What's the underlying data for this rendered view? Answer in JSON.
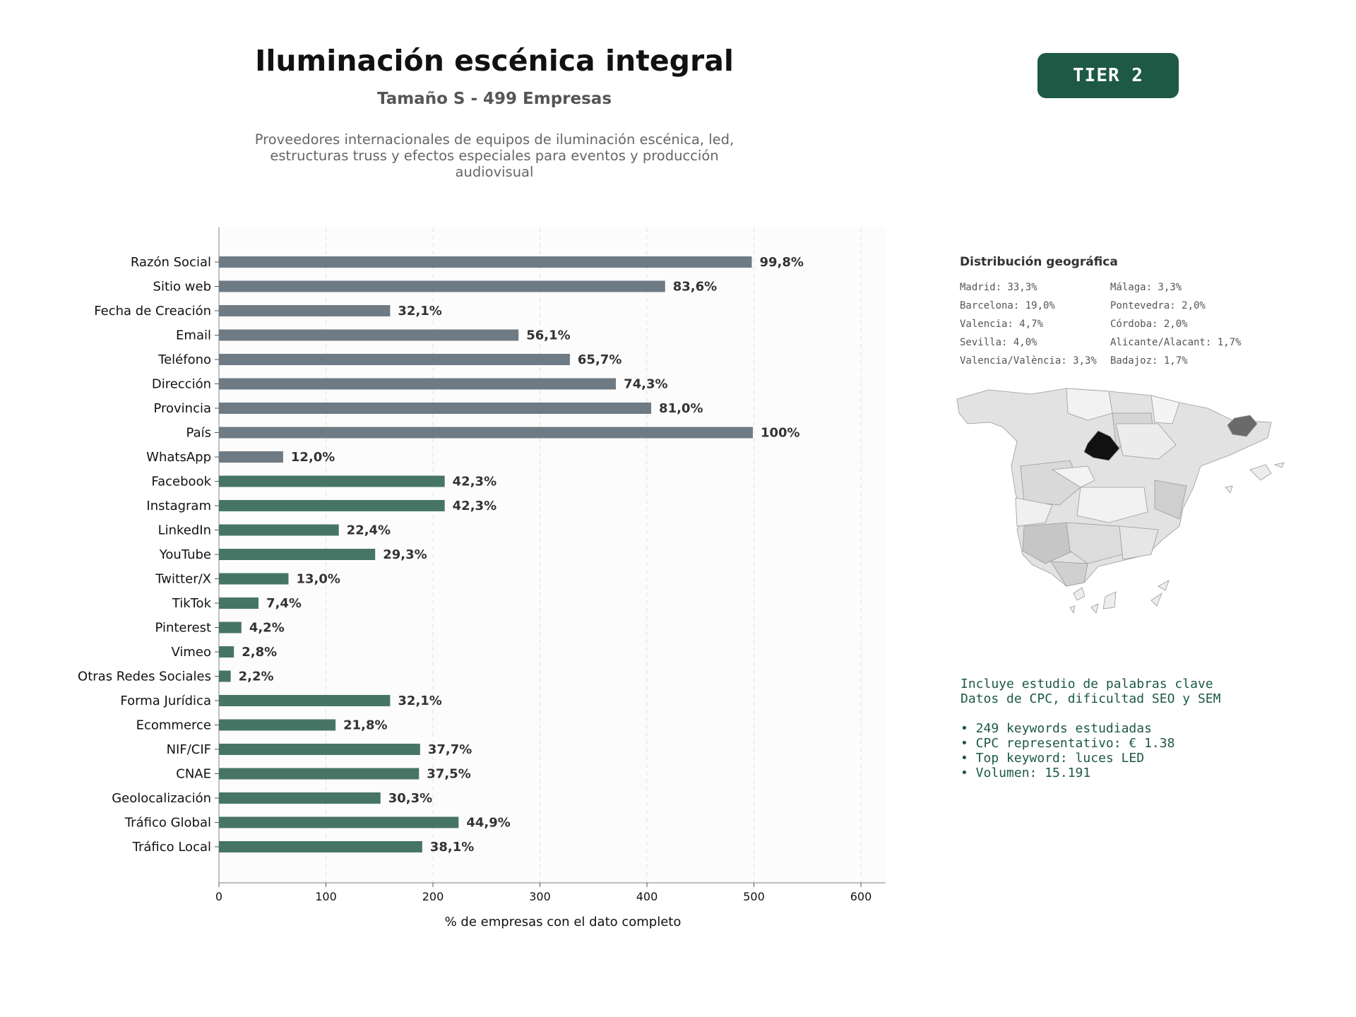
{
  "header": {
    "title": "Iluminación escénica integral",
    "subtitle": "Tamaño S - 499 Empresas",
    "description": "Proveedores internacionales de equipos de iluminación escénica, led, estructuras truss y efectos especiales para eventos y producción audiovisual",
    "tier": "TIER 2"
  },
  "colors": {
    "gray_bar": "#6e7a84",
    "green_bar": "#477565",
    "tier_bg": "#1d5945",
    "keyword_text": "#1d5945"
  },
  "chart_data": {
    "type": "bar",
    "orientation": "horizontal",
    "xlabel": "% de empresas con el dato completo",
    "xlim": [
      0,
      625
    ],
    "xticks": [
      0,
      100,
      200,
      300,
      400,
      500,
      600
    ],
    "grid": "vertical dashed",
    "categories": [
      "Razón Social",
      "Sitio web",
      "Fecha de Creación",
      "Email",
      "Teléfono",
      "Dirección",
      "Provincia",
      "País",
      "WhatsApp",
      "Facebook",
      "Instagram",
      "LinkedIn",
      "YouTube",
      "Twitter/X",
      "TikTok",
      "Pinterest",
      "Vimeo",
      "Otras Redes Sociales",
      "Forma Jurídica",
      "Ecommerce",
      "NIF/CIF",
      "CNAE",
      "Geolocalización",
      "Tráfico Global",
      "Tráfico Local"
    ],
    "values": [
      498,
      417,
      160,
      280,
      328,
      371,
      404,
      499,
      60,
      211,
      211,
      112,
      146,
      65,
      37,
      21,
      14,
      11,
      160,
      109,
      188,
      187,
      151,
      224,
      190
    ],
    "labels": [
      "99,8%",
      "83,6%",
      "32,1%",
      "56,1%",
      "65,7%",
      "74,3%",
      "81,0%",
      "100%",
      "12,0%",
      "42,3%",
      "42,3%",
      "22,4%",
      "29,3%",
      "13,0%",
      "7,4%",
      "4,2%",
      "2,8%",
      "2,2%",
      "32,1%",
      "21,8%",
      "37,7%",
      "37,5%",
      "30,3%",
      "44,9%",
      "38,1%"
    ],
    "groups": [
      "gray",
      "gray",
      "gray",
      "gray",
      "gray",
      "gray",
      "gray",
      "gray",
      "gray",
      "green",
      "green",
      "green",
      "green",
      "green",
      "green",
      "green",
      "green",
      "green",
      "green",
      "green",
      "green",
      "green",
      "green",
      "green",
      "green"
    ]
  },
  "geo": {
    "title": "Distribución geográfica",
    "items": [
      "Madrid: 33,3%",
      "Málaga: 3,3%",
      "Barcelona: 19,0%",
      "Pontevedra: 2,0%",
      "Valencia: 4,7%",
      "Córdoba: 2,0%",
      "Sevilla: 4,0%",
      "Alicante/Alacant: 1,7%",
      "Valencia/València: 3,3%",
      "Badajoz: 1,7%"
    ]
  },
  "keywords": {
    "line1": "Incluye estudio de palabras clave",
    "line2": "Datos de CPC, dificultad SEO y SEM",
    "bullets": [
      "• 249 keywords estudiadas",
      "• CPC representativo: € 1.38",
      "• Top keyword: luces LED",
      "• Volumen: 15.191"
    ]
  }
}
